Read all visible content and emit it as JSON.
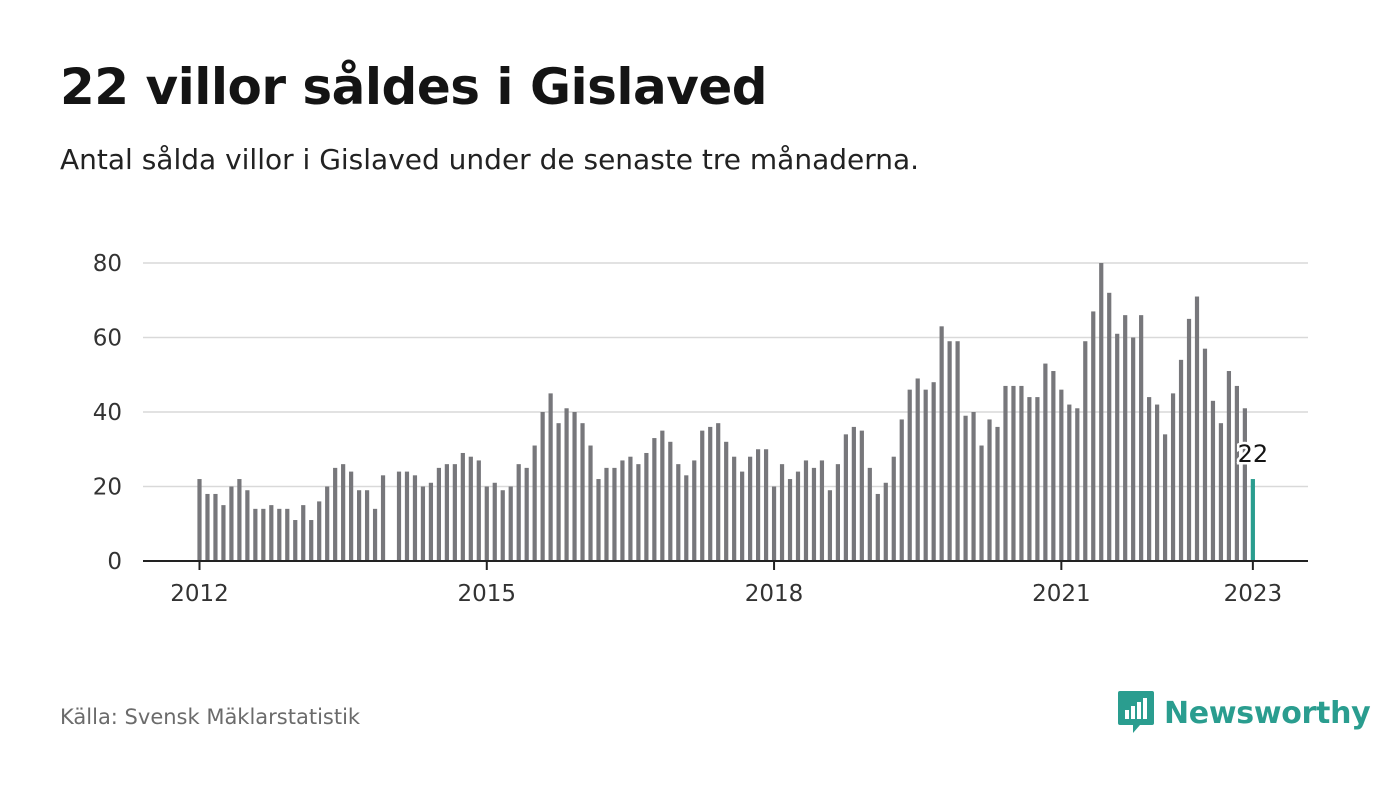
{
  "header": {
    "title": "22 villor såldes i Gislaved",
    "subtitle": "Antal sålda villor i Gislaved under de senaste tre månaderna."
  },
  "footer": {
    "source": "Källa: Svensk Mäklarstatistik",
    "brand": "Newsworthy",
    "brand_icon": "bar-chart-speech-bubble-icon"
  },
  "colors": {
    "bar": "#77777b",
    "highlight": "#2a9d8f",
    "grid": "#d9d9d9",
    "axis": "#222222",
    "brand": "#2a9d8f"
  },
  "chart_data": {
    "type": "bar",
    "title": "",
    "xlabel": "",
    "ylabel": "",
    "ylim": [
      0,
      80
    ],
    "yticks": [
      "0",
      "20",
      "40",
      "60",
      "80"
    ],
    "xticks": [
      "2012",
      "2015",
      "2018",
      "2021",
      "2023"
    ],
    "grid": true,
    "period": "2012-01 to 2023-01, monthly",
    "highlight_label": "22",
    "values": [
      22,
      18,
      18,
      15,
      20,
      22,
      19,
      14,
      14,
      15,
      14,
      14,
      11,
      15,
      11,
      16,
      20,
      25,
      26,
      24,
      19,
      19,
      14,
      23,
      0,
      24,
      24,
      23,
      20,
      21,
      25,
      26,
      26,
      29,
      28,
      27,
      20,
      21,
      19,
      20,
      26,
      25,
      31,
      40,
      45,
      37,
      41,
      40,
      37,
      31,
      22,
      25,
      25,
      27,
      28,
      26,
      29,
      33,
      35,
      32,
      26,
      23,
      27,
      35,
      36,
      37,
      32,
      28,
      24,
      28,
      30,
      30,
      20,
      26,
      22,
      24,
      27,
      25,
      27,
      19,
      26,
      34,
      36,
      35,
      25,
      18,
      21,
      28,
      38,
      46,
      49,
      46,
      48,
      63,
      59,
      59,
      39,
      40,
      31,
      38,
      36,
      47,
      47,
      47,
      44,
      44,
      53,
      51,
      46,
      42,
      41,
      59,
      67,
      80,
      72,
      61,
      66,
      60,
      66,
      44,
      42,
      34,
      45,
      54,
      65,
      71,
      57,
      43,
      37,
      51,
      47,
      41,
      22
    ]
  }
}
